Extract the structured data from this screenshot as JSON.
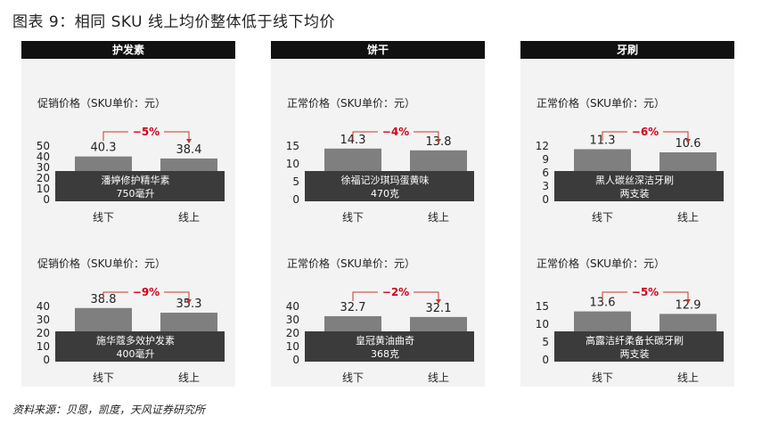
{
  "figure_title": "图表 9：相同 SKU 线上均价整体低于线下均价",
  "source": "资料来源：贝恩，凯度，天风证券研究所",
  "colors": {
    "bar": "#7f7f7f",
    "band": "#3b3b3b",
    "band_text": "#ffffff",
    "arrow": "#c0392b",
    "pct": "#d0021b",
    "panel_bg": "#f3f3f3",
    "header_bg": "#111111"
  },
  "chart_data": [
    {
      "type": "bar",
      "panel_title": "护发素",
      "ylabel": "促销价格（SKU单价：元）",
      "categories": [
        "线下",
        "线上"
      ],
      "values": [
        40.3,
        38.4
      ],
      "value_labels": [
        "40.3",
        "38.4"
      ],
      "yticks": [
        "0",
        "10",
        "20",
        "30",
        "40",
        "50"
      ],
      "ylim": [
        0,
        50
      ],
      "change": "−5%",
      "product": [
        "潘婷修护精华素",
        "750毫升"
      ]
    },
    {
      "type": "bar",
      "panel_title": "护发素",
      "ylabel": "促销价格（SKU单价：元）",
      "categories": [
        "线下",
        "线上"
      ],
      "values": [
        38.8,
        35.3
      ],
      "value_labels": [
        "38.8",
        "35.3"
      ],
      "yticks": [
        "0",
        "10",
        "20",
        "30",
        "40"
      ],
      "ylim": [
        0,
        40
      ],
      "change": "−9%",
      "product": [
        "施华蔻多效护发素",
        "400毫升"
      ]
    },
    {
      "type": "bar",
      "panel_title": "饼干",
      "ylabel": "正常价格（SKU单价：元）",
      "categories": [
        "线下",
        "线上"
      ],
      "values": [
        14.3,
        13.8
      ],
      "value_labels": [
        "14.3",
        "13.8"
      ],
      "yticks": [
        "0",
        "5",
        "10",
        "15"
      ],
      "ylim": [
        0,
        15
      ],
      "change": "−4%",
      "product": [
        "徐福记沙琪玛蛋黄味",
        "470克"
      ]
    },
    {
      "type": "bar",
      "panel_title": "饼干",
      "ylabel": "正常价格（SKU单价：元）",
      "categories": [
        "线下",
        "线上"
      ],
      "values": [
        32.7,
        32.1
      ],
      "value_labels": [
        "32.7",
        "32.1"
      ],
      "yticks": [
        "0",
        "10",
        "20",
        "30",
        "40"
      ],
      "ylim": [
        0,
        40
      ],
      "change": "−2%",
      "product": [
        "皇冠黄油曲奇",
        "368克"
      ]
    },
    {
      "type": "bar",
      "panel_title": "牙刷",
      "ylabel": "正常价格（SKU单价：元）",
      "categories": [
        "线下",
        "线上"
      ],
      "values": [
        11.3,
        10.6
      ],
      "value_labels": [
        "11.3",
        "10.6"
      ],
      "yticks": [
        "0",
        "3",
        "6",
        "9",
        "12"
      ],
      "ylim": [
        0,
        12
      ],
      "change": "−6%",
      "product": [
        "黑人碳丝深洁牙刷",
        "两支装"
      ]
    },
    {
      "type": "bar",
      "panel_title": "牙刷",
      "ylabel": "正常价格（SKU单价：元）",
      "categories": [
        "线下",
        "线上"
      ],
      "values": [
        13.6,
        12.9
      ],
      "value_labels": [
        "13.6",
        "12.9"
      ],
      "yticks": [
        "0",
        "5",
        "10",
        "15"
      ],
      "ylim": [
        0,
        15
      ],
      "change": "−5%",
      "product": [
        "高露洁纤柔备长碳牙刷",
        "两支装"
      ]
    }
  ]
}
